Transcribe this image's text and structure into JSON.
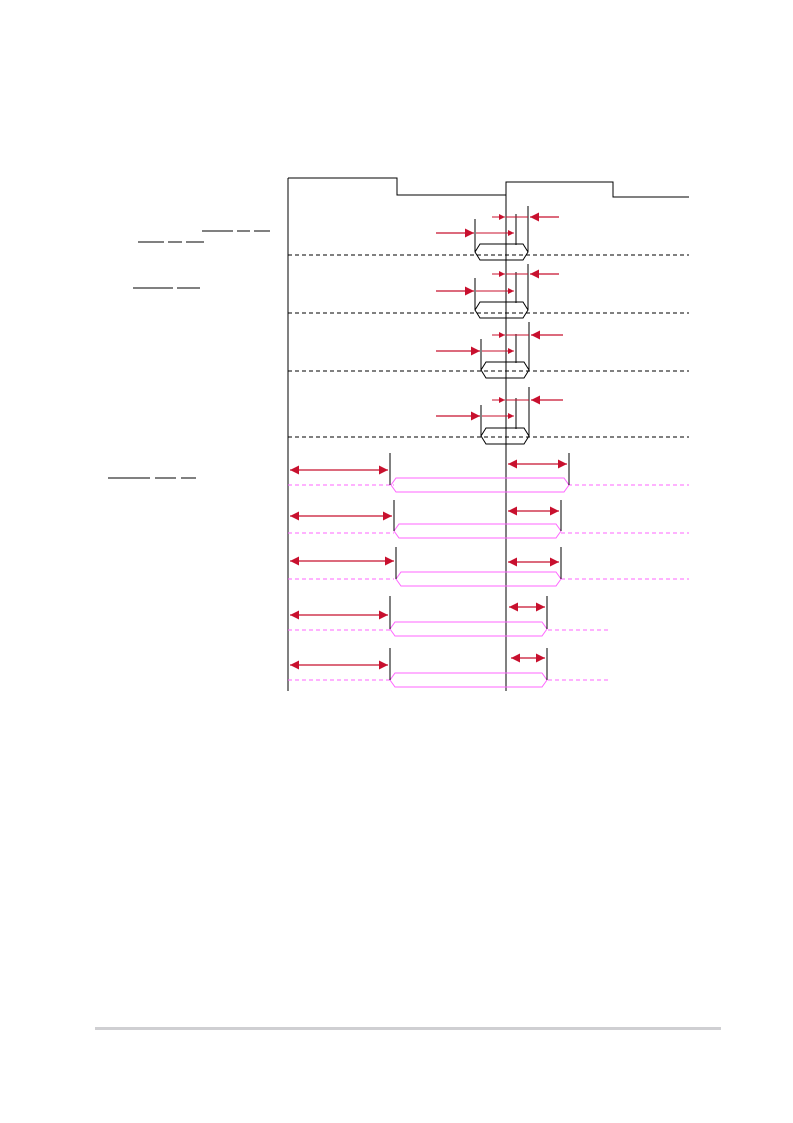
{
  "colors": {
    "line": "#000000",
    "arrow": "#c8102e",
    "pulse": "#ff66ff",
    "footer_rule": "#cfcfd2"
  },
  "diagram": {
    "signals": [
      {
        "kind": "clock",
        "label": ""
      },
      {
        "kind": "address-window",
        "label": ""
      },
      {
        "kind": "address-window",
        "label": ""
      },
      {
        "kind": "address-window",
        "label": ""
      },
      {
        "kind": "address-window",
        "label": ""
      },
      {
        "kind": "strobe-pulse",
        "label": ""
      },
      {
        "kind": "strobe-pulse",
        "label": ""
      },
      {
        "kind": "strobe-pulse",
        "label": ""
      },
      {
        "kind": "strobe-pulse",
        "label": ""
      },
      {
        "kind": "strobe-pulse",
        "label": ""
      }
    ],
    "overbar_labels": [
      {
        "text": ""
      },
      {
        "text": ""
      },
      {
        "text": ""
      },
      {
        "text": ""
      }
    ]
  }
}
